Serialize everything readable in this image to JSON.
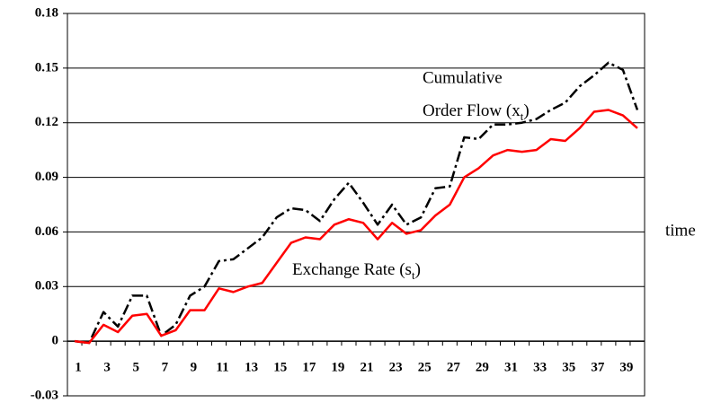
{
  "chart_data": {
    "type": "line",
    "x_label": "time",
    "categories": [
      1,
      null,
      3,
      null,
      5,
      null,
      7,
      null,
      9,
      null,
      11,
      null,
      13,
      null,
      15,
      null,
      17,
      null,
      19,
      null,
      21,
      null,
      23,
      null,
      25,
      null,
      27,
      null,
      29,
      null,
      31,
      null,
      33,
      null,
      35,
      null,
      37,
      null,
      39,
      null
    ],
    "series": [
      {
        "name": "Cumulative Order Flow",
        "color": "#000000",
        "dash": "dashdot",
        "values": [
          0,
          -0.001,
          0.016,
          0.008,
          0.025,
          0.025,
          0.003,
          0.009,
          0.025,
          0.03,
          0.044,
          0.045,
          0.051,
          0.057,
          0.068,
          0.073,
          0.072,
          0.066,
          0.078,
          0.087,
          0.076,
          0.064,
          0.075,
          0.064,
          0.068,
          0.084,
          0.085,
          0.112,
          0.111,
          0.119,
          0.119,
          0.12,
          0.122,
          0.127,
          0.131,
          0.14,
          0.146,
          0.153,
          0.149,
          0.127
        ]
      },
      {
        "name": "Exchange Rate",
        "color": "#ff0000",
        "dash": "solid",
        "values": [
          0,
          -0.001,
          0.009,
          0.005,
          0.014,
          0.015,
          0.003,
          0.006,
          0.017,
          0.017,
          0.029,
          0.027,
          0.03,
          0.032,
          0.043,
          0.054,
          0.057,
          0.056,
          0.064,
          0.067,
          0.065,
          0.056,
          0.065,
          0.059,
          0.061,
          0.069,
          0.075,
          0.09,
          0.095,
          0.102,
          0.105,
          0.104,
          0.105,
          0.111,
          0.11,
          0.117,
          0.126,
          0.127,
          0.124,
          0.117
        ]
      }
    ],
    "annotations": [
      {
        "text": "Cumulative"
      },
      {
        "text": "Order Flow (x",
        "sub": "t",
        "tail": ")"
      },
      {
        "text": "Exchange Rate (s",
        "sub": "t",
        "tail": ")"
      }
    ],
    "ylim": [
      -0.03,
      0.18
    ],
    "yticks": [
      -0.03,
      0,
      0.03,
      0.06,
      0.09,
      0.12,
      0.15,
      0.18
    ],
    "grid": true
  }
}
